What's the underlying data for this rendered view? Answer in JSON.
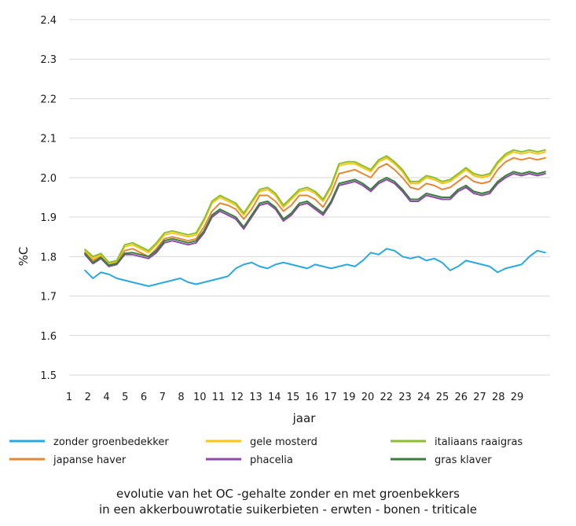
{
  "chart_data": {
    "type": "line",
    "title_line1": "evolutie van het OC -gehalte zonder en met groenbekkers",
    "title_line2": "in een akkerbouwrotatie suikerbieten - erwten - bonen - triticale",
    "xlabel": "jaar",
    "ylabel": "%C",
    "ylim": [
      1.5,
      2.4
    ],
    "y_ticks": [
      "1.5",
      "1.6",
      "1.7",
      "1.8",
      "1.9",
      "2.0",
      "2.1",
      "2.2",
      "2.3",
      "2.4"
    ],
    "x_tick_labels": [
      "1",
      "2",
      "4",
      "5",
      "6",
      "7",
      "8",
      "10",
      "11",
      "12",
      "13",
      "14",
      "15",
      "16",
      "17",
      "19",
      "20",
      "22",
      "23",
      "24",
      "25",
      "26",
      "27",
      "28",
      "29"
    ],
    "x": [
      2.0,
      2.5,
      3.0,
      3.5,
      4.0,
      4.5,
      5.0,
      5.5,
      6.0,
      6.5,
      7.0,
      7.5,
      8.0,
      8.5,
      9.0,
      9.5,
      10.0,
      10.5,
      11.0,
      11.5,
      12.0,
      12.5,
      13.0,
      13.5,
      14.0,
      14.5,
      15.0,
      15.5,
      16.0,
      16.5,
      17.0,
      17.5,
      18.0,
      18.5,
      19.0,
      19.5,
      20.0,
      20.5,
      21.0,
      21.5,
      22.0,
      22.5,
      23.0,
      23.5,
      24.0,
      24.5,
      25.0,
      25.5,
      26.0,
      26.5,
      27.0,
      27.5,
      28.0,
      28.5,
      29.0,
      29.5,
      30.0,
      30.5,
      31.0
    ],
    "series": [
      {
        "name": "zonder groenbedekker",
        "color": "#2ba8df",
        "values": [
          1.765,
          1.745,
          1.76,
          1.755,
          1.745,
          1.74,
          1.735,
          1.73,
          1.725,
          1.73,
          1.735,
          1.74,
          1.745,
          1.735,
          1.73,
          1.735,
          1.74,
          1.745,
          1.75,
          1.77,
          1.78,
          1.785,
          1.775,
          1.77,
          1.78,
          1.785,
          1.78,
          1.775,
          1.77,
          1.78,
          1.775,
          1.77,
          1.775,
          1.78,
          1.775,
          1.79,
          1.81,
          1.805,
          1.82,
          1.815,
          1.8,
          1.795,
          1.8,
          1.79,
          1.795,
          1.785,
          1.765,
          1.775,
          1.79,
          1.785,
          1.78,
          1.775,
          1.76,
          1.77,
          1.775,
          1.78,
          1.8,
          1.815,
          1.81
        ]
      },
      {
        "name": "japanse haver",
        "color": "#e08a35",
        "values": [
          1.81,
          1.79,
          1.8,
          1.78,
          1.785,
          1.815,
          1.82,
          1.81,
          1.8,
          1.82,
          1.845,
          1.85,
          1.845,
          1.84,
          1.845,
          1.875,
          1.915,
          1.935,
          1.93,
          1.92,
          1.895,
          1.92,
          1.955,
          1.955,
          1.94,
          1.915,
          1.93,
          1.955,
          1.955,
          1.945,
          1.925,
          1.96,
          2.01,
          2.015,
          2.02,
          2.01,
          2.0,
          2.025,
          2.035,
          2.02,
          2.0,
          1.975,
          1.97,
          1.985,
          1.98,
          1.97,
          1.975,
          1.99,
          2.005,
          1.99,
          1.985,
          1.99,
          2.02,
          2.04,
          2.05,
          2.045,
          2.05,
          2.045,
          2.05
        ]
      },
      {
        "name": "gele mosterd",
        "color": "#f5c518",
        "values": [
          1.815,
          1.795,
          1.805,
          1.782,
          1.788,
          1.825,
          1.83,
          1.82,
          1.81,
          1.83,
          1.855,
          1.86,
          1.855,
          1.85,
          1.855,
          1.89,
          1.935,
          1.95,
          1.94,
          1.93,
          1.905,
          1.935,
          1.965,
          1.97,
          1.955,
          1.925,
          1.945,
          1.965,
          1.97,
          1.96,
          1.94,
          1.975,
          2.03,
          2.035,
          2.035,
          2.025,
          2.015,
          2.04,
          2.05,
          2.035,
          2.015,
          1.985,
          1.985,
          2.0,
          1.995,
          1.985,
          1.99,
          2.005,
          2.02,
          2.005,
          2.0,
          2.005,
          2.035,
          2.055,
          2.065,
          2.06,
          2.065,
          2.06,
          2.065
        ]
      },
      {
        "name": "phacelia",
        "color": "#8e4aa8",
        "values": [
          1.805,
          1.782,
          1.795,
          1.775,
          1.78,
          1.805,
          1.805,
          1.8,
          1.795,
          1.81,
          1.835,
          1.84,
          1.835,
          1.83,
          1.835,
          1.86,
          1.9,
          1.915,
          1.905,
          1.895,
          1.87,
          1.9,
          1.93,
          1.935,
          1.92,
          1.89,
          1.905,
          1.93,
          1.935,
          1.92,
          1.905,
          1.935,
          1.98,
          1.985,
          1.99,
          1.98,
          1.965,
          1.985,
          1.995,
          1.985,
          1.965,
          1.94,
          1.94,
          1.955,
          1.95,
          1.945,
          1.945,
          1.965,
          1.975,
          1.96,
          1.955,
          1.96,
          1.985,
          2.0,
          2.01,
          2.005,
          2.01,
          2.005,
          2.01
        ]
      },
      {
        "name": "italiaans raaigras",
        "color": "#8dbe2c",
        "values": [
          1.818,
          1.8,
          1.808,
          1.785,
          1.79,
          1.83,
          1.835,
          1.825,
          1.815,
          1.835,
          1.86,
          1.865,
          1.86,
          1.855,
          1.86,
          1.895,
          1.94,
          1.955,
          1.945,
          1.935,
          1.91,
          1.94,
          1.97,
          1.975,
          1.96,
          1.93,
          1.95,
          1.97,
          1.975,
          1.965,
          1.945,
          1.98,
          2.035,
          2.04,
          2.04,
          2.03,
          2.02,
          2.045,
          2.055,
          2.04,
          2.02,
          1.99,
          1.99,
          2.005,
          2.0,
          1.99,
          1.995,
          2.01,
          2.025,
          2.01,
          2.005,
          2.01,
          2.04,
          2.06,
          2.07,
          2.065,
          2.07,
          2.065,
          2.07
        ]
      },
      {
        "name": "gras klaver",
        "color": "#3b7d3b",
        "values": [
          1.808,
          1.785,
          1.798,
          1.778,
          1.782,
          1.808,
          1.81,
          1.805,
          1.8,
          1.815,
          1.84,
          1.845,
          1.84,
          1.835,
          1.84,
          1.865,
          1.905,
          1.92,
          1.91,
          1.9,
          1.875,
          1.905,
          1.935,
          1.94,
          1.925,
          1.895,
          1.91,
          1.935,
          1.94,
          1.925,
          1.91,
          1.94,
          1.985,
          1.99,
          1.995,
          1.985,
          1.97,
          1.99,
          2.0,
          1.99,
          1.97,
          1.945,
          1.945,
          1.96,
          1.955,
          1.95,
          1.95,
          1.97,
          1.98,
          1.965,
          1.96,
          1.965,
          1.99,
          2.005,
          2.015,
          2.01,
          2.015,
          2.01,
          2.015
        ]
      }
    ],
    "legend_order": [
      0,
      2,
      4,
      1,
      3,
      5
    ],
    "legend_position": "bottom",
    "grid": true
  }
}
